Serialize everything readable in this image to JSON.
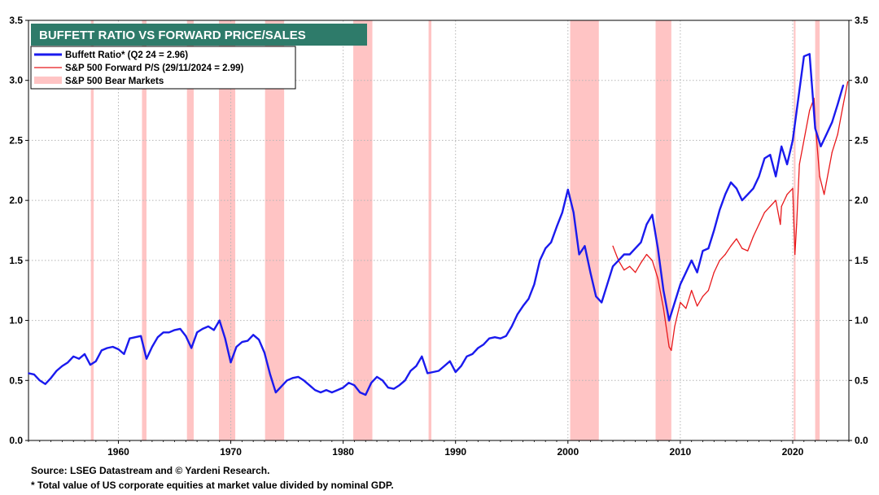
{
  "chart_data": {
    "type": "line",
    "title": "BUFFETT RATIO VS FORWARD PRICE/SALES",
    "xlim": [
      1952,
      2025
    ],
    "ylim": [
      0,
      3.5
    ],
    "yticks": [
      0.0,
      0.5,
      1.0,
      1.5,
      2.0,
      2.5,
      3.0,
      3.5
    ],
    "ytick_labels": [
      "0.0",
      "0.5",
      "1.0",
      "1.5",
      "2.0",
      "2.5",
      "3.0",
      "3.5"
    ],
    "xticks": [
      1960,
      1970,
      1980,
      1990,
      2000,
      2010,
      2020
    ],
    "xtick_labels": [
      "1960",
      "1970",
      "1980",
      "1990",
      "2000",
      "2010",
      "2020"
    ],
    "grid": true,
    "legend_position": "top-left",
    "bear_markets": [
      [
        1957.55,
        1957.8
      ],
      [
        1962.1,
        1962.5
      ],
      [
        1966.1,
        1966.7
      ],
      [
        1968.95,
        1970.4
      ],
      [
        1973.05,
        1974.75
      ],
      [
        1980.9,
        1982.6
      ],
      [
        1987.6,
        1987.85
      ],
      [
        2000.2,
        2002.75
      ],
      [
        2007.8,
        2009.2
      ],
      [
        2020.1,
        2020.25
      ],
      [
        2022.0,
        2022.4
      ]
    ],
    "series": [
      {
        "name": "Buffett Ratio* (Q2 24 = 2.96)",
        "color": "#1a1aee",
        "x": [
          1952.0,
          1952.5,
          1953.0,
          1953.5,
          1954.0,
          1954.5,
          1955.0,
          1955.5,
          1956.0,
          1956.5,
          1957.0,
          1957.5,
          1958.0,
          1958.5,
          1959.0,
          1959.5,
          1960.0,
          1960.5,
          1961.0,
          1961.5,
          1962.0,
          1962.5,
          1963.0,
          1963.5,
          1964.0,
          1964.5,
          1965.0,
          1965.5,
          1966.0,
          1966.5,
          1967.0,
          1967.5,
          1968.0,
          1968.5,
          1969.0,
          1969.5,
          1970.0,
          1970.5,
          1971.0,
          1971.5,
          1972.0,
          1972.5,
          1973.0,
          1973.5,
          1974.0,
          1974.5,
          1975.0,
          1975.5,
          1976.0,
          1976.5,
          1977.0,
          1977.5,
          1978.0,
          1978.5,
          1979.0,
          1979.5,
          1980.0,
          1980.5,
          1981.0,
          1981.5,
          1982.0,
          1982.5,
          1983.0,
          1983.5,
          1984.0,
          1984.5,
          1985.0,
          1985.5,
          1986.0,
          1986.5,
          1987.0,
          1987.5,
          1988.0,
          1988.5,
          1989.0,
          1989.5,
          1990.0,
          1990.5,
          1991.0,
          1991.5,
          1992.0,
          1992.5,
          1993.0,
          1993.5,
          1994.0,
          1994.5,
          1995.0,
          1995.5,
          1996.0,
          1996.5,
          1997.0,
          1997.5,
          1998.0,
          1998.5,
          1999.0,
          1999.5,
          2000.0,
          2000.5,
          2001.0,
          2001.5,
          2002.0,
          2002.5,
          2003.0,
          2003.5,
          2004.0,
          2004.5,
          2005.0,
          2005.5,
          2006.0,
          2006.5,
          2007.0,
          2007.5,
          2008.0,
          2008.5,
          2009.0,
          2009.5,
          2010.0,
          2010.5,
          2011.0,
          2011.5,
          2012.0,
          2012.5,
          2013.0,
          2013.5,
          2014.0,
          2014.5,
          2015.0,
          2015.5,
          2016.0,
          2016.5,
          2017.0,
          2017.5,
          2018.0,
          2018.5,
          2019.0,
          2019.5,
          2020.0,
          2020.5,
          2021.0,
          2021.5,
          2022.0,
          2022.5,
          2023.0,
          2023.5,
          2024.0,
          2024.5
        ],
        "values": [
          0.56,
          0.55,
          0.5,
          0.47,
          0.52,
          0.58,
          0.62,
          0.65,
          0.7,
          0.68,
          0.72,
          0.63,
          0.66,
          0.75,
          0.77,
          0.78,
          0.76,
          0.72,
          0.85,
          0.86,
          0.87,
          0.68,
          0.78,
          0.86,
          0.9,
          0.9,
          0.92,
          0.93,
          0.87,
          0.77,
          0.9,
          0.93,
          0.95,
          0.92,
          1.0,
          0.85,
          0.65,
          0.78,
          0.82,
          0.83,
          0.88,
          0.84,
          0.73,
          0.55,
          0.4,
          0.45,
          0.5,
          0.52,
          0.53,
          0.5,
          0.46,
          0.42,
          0.4,
          0.42,
          0.4,
          0.42,
          0.44,
          0.48,
          0.46,
          0.4,
          0.38,
          0.48,
          0.53,
          0.5,
          0.44,
          0.43,
          0.46,
          0.5,
          0.58,
          0.62,
          0.7,
          0.56,
          0.57,
          0.58,
          0.62,
          0.66,
          0.57,
          0.62,
          0.7,
          0.72,
          0.77,
          0.8,
          0.85,
          0.86,
          0.85,
          0.87,
          0.95,
          1.05,
          1.12,
          1.18,
          1.3,
          1.5,
          1.6,
          1.65,
          1.78,
          1.9,
          2.09,
          1.9,
          1.55,
          1.62,
          1.4,
          1.2,
          1.15,
          1.3,
          1.45,
          1.5,
          1.55,
          1.55,
          1.6,
          1.65,
          1.8,
          1.88,
          1.6,
          1.25,
          1.0,
          1.15,
          1.3,
          1.4,
          1.5,
          1.4,
          1.58,
          1.6,
          1.75,
          1.92,
          2.05,
          2.15,
          2.1,
          2.0,
          2.05,
          2.1,
          2.2,
          2.35,
          2.38,
          2.2,
          2.45,
          2.3,
          2.5,
          2.85,
          3.2,
          3.22,
          2.6,
          2.45,
          2.55,
          2.65,
          2.8,
          2.96
        ]
      },
      {
        "name": "S&P 500 Forward P/S (29/11/2024 = 2.99)",
        "color": "#e8191c",
        "x": [
          2004.0,
          2004.5,
          2005.0,
          2005.5,
          2006.0,
          2006.5,
          2007.0,
          2007.5,
          2008.0,
          2008.5,
          2009.0,
          2009.2,
          2009.5,
          2010.0,
          2010.5,
          2011.0,
          2011.5,
          2012.0,
          2012.5,
          2013.0,
          2013.5,
          2014.0,
          2014.5,
          2015.0,
          2015.5,
          2016.0,
          2016.5,
          2017.0,
          2017.5,
          2018.0,
          2018.5,
          2018.9,
          2019.0,
          2019.5,
          2020.0,
          2020.2,
          2020.35,
          2020.6,
          2021.0,
          2021.5,
          2021.9,
          2022.0,
          2022.4,
          2022.8,
          2023.0,
          2023.5,
          2024.0,
          2024.5,
          2024.9
        ],
        "values": [
          1.62,
          1.5,
          1.42,
          1.45,
          1.4,
          1.48,
          1.55,
          1.5,
          1.35,
          1.1,
          0.78,
          0.75,
          0.95,
          1.15,
          1.1,
          1.25,
          1.12,
          1.2,
          1.25,
          1.4,
          1.5,
          1.55,
          1.62,
          1.68,
          1.6,
          1.58,
          1.7,
          1.8,
          1.9,
          1.95,
          2.0,
          1.8,
          1.95,
          2.05,
          2.1,
          1.55,
          1.8,
          2.3,
          2.5,
          2.75,
          2.85,
          2.65,
          2.2,
          2.05,
          2.15,
          2.4,
          2.55,
          2.8,
          2.99
        ]
      },
      {
        "name": "S&P 500 Bear Markets",
        "color": "#ffc4c4"
      }
    ],
    "notes": [
      "Source: LSEG Datastream and © Yardeni Research.",
      "* Total value of US corporate equities at market value divided by nominal GDP."
    ]
  }
}
